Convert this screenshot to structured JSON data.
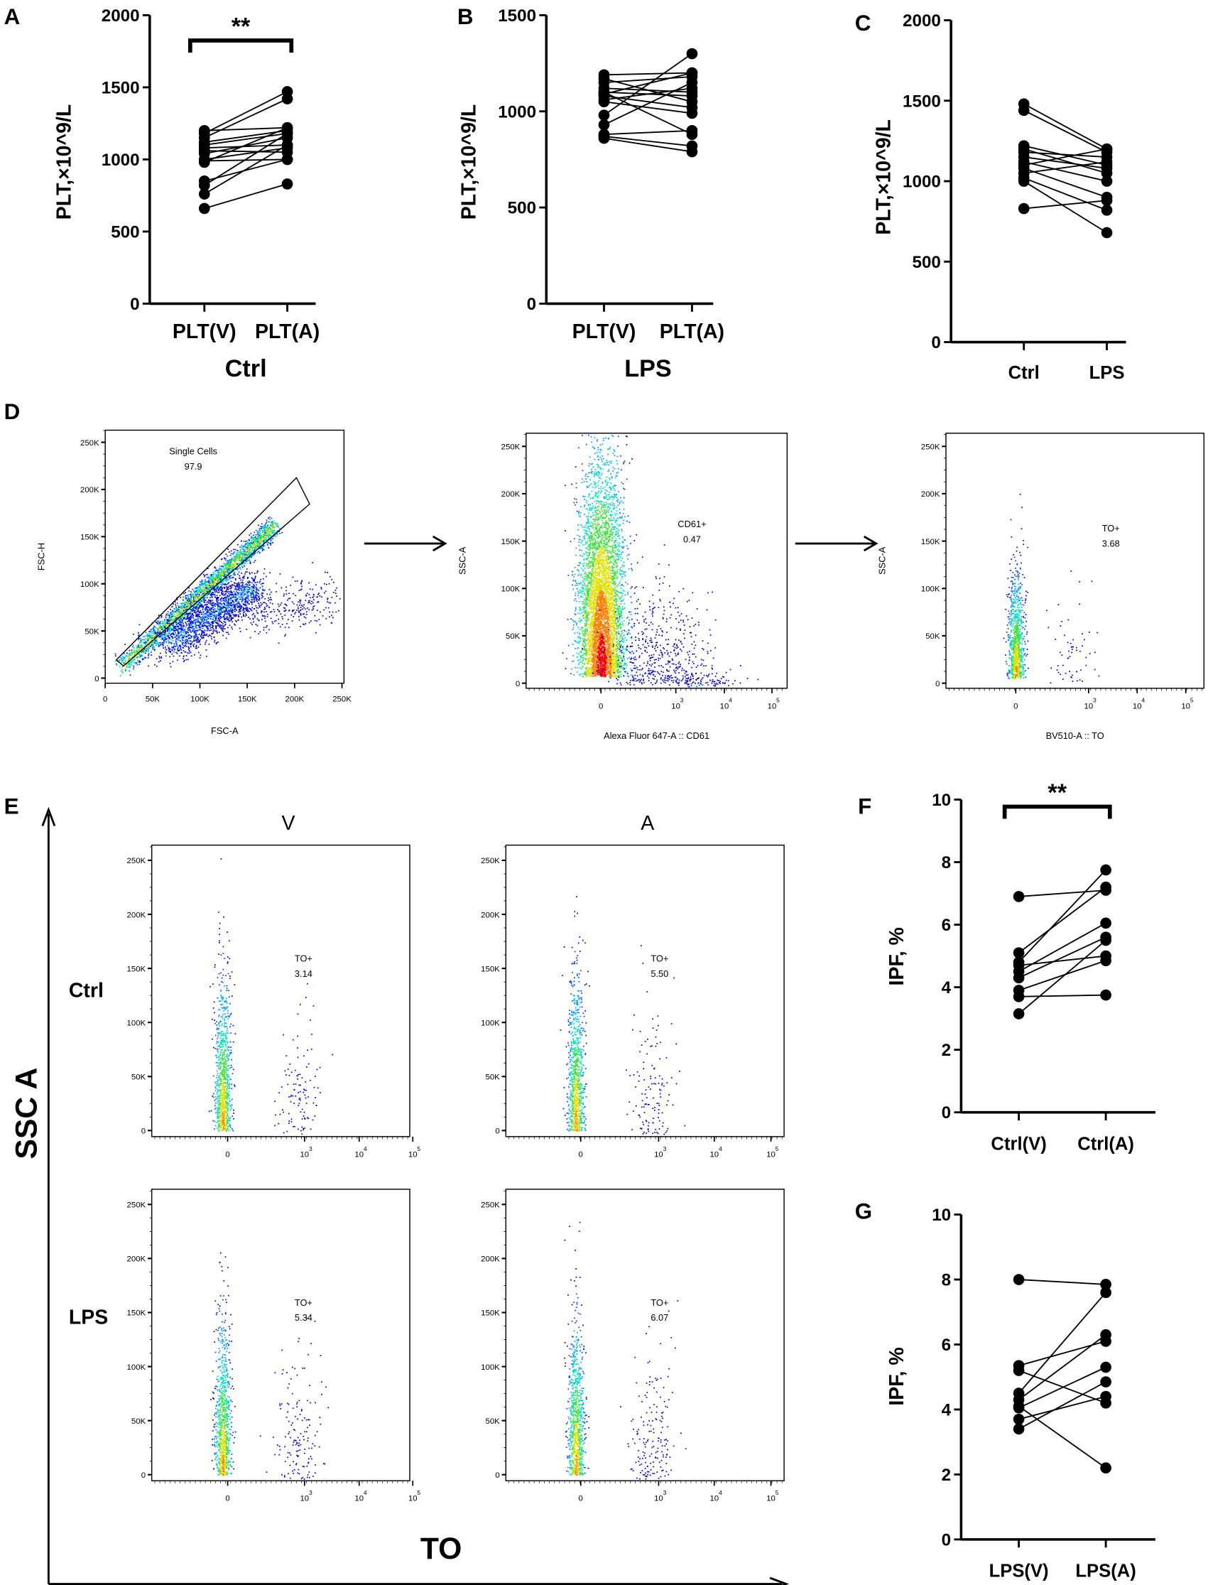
{
  "panel_letters": {
    "A": "A",
    "B": "B",
    "C": "C",
    "D": "D",
    "E": "E",
    "F": "F",
    "G": "G"
  },
  "chart_data": [
    {
      "id": "A",
      "type": "line",
      "title": "Ctrl",
      "ylabel": "PLT,×10^9/L",
      "ylim": [
        0,
        2000
      ],
      "yticks": [
        0,
        500,
        1000,
        1500,
        2000
      ],
      "categories": [
        "PLT(V)",
        "PLT(A)"
      ],
      "significance": "**",
      "pairs": [
        [
          1200,
          1220
        ],
        [
          1180,
          1470
        ],
        [
          1150,
          1420
        ],
        [
          1120,
          1200
        ],
        [
          1100,
          1180
        ],
        [
          1080,
          1100
        ],
        [
          1060,
          1050
        ],
        [
          1040,
          1150
        ],
        [
          1000,
          1080
        ],
        [
          990,
          1000
        ],
        [
          980,
          1220
        ],
        [
          850,
          1000
        ],
        [
          820,
          1180
        ],
        [
          760,
          1100
        ],
        [
          660,
          830
        ]
      ]
    },
    {
      "id": "B",
      "type": "line",
      "title": "LPS",
      "ylabel": "PLT,×10^9/L",
      "ylim": [
        0,
        1500
      ],
      "yticks": [
        0,
        500,
        1000,
        1500
      ],
      "categories": [
        "PLT(V)",
        "PLT(A)"
      ],
      "significance": "",
      "pairs": [
        [
          1190,
          1200
        ],
        [
          1170,
          1050
        ],
        [
          1150,
          1180
        ],
        [
          1120,
          1100
        ],
        [
          1100,
          1080
        ],
        [
          1090,
          1200
        ],
        [
          1080,
          1020
        ],
        [
          1050,
          990
        ],
        [
          980,
          1300
        ],
        [
          930,
          1150
        ],
        [
          880,
          900
        ],
        [
          870,
          820
        ],
        [
          860,
          790
        ],
        [
          1100,
          880
        ],
        [
          1060,
          1120
        ]
      ]
    },
    {
      "id": "C",
      "type": "line",
      "title": "",
      "ylabel": "PLT,×10^9/L",
      "ylim": [
        0,
        2000
      ],
      "yticks": [
        0,
        500,
        1000,
        1500,
        2000
      ],
      "categories": [
        "Ctrl",
        "LPS"
      ],
      "significance": "",
      "pairs": [
        [
          1480,
          1200
        ],
        [
          1440,
          1180
        ],
        [
          1220,
          1100
        ],
        [
          1200,
          1050
        ],
        [
          1180,
          1150
        ],
        [
          1150,
          1080
        ],
        [
          1120,
          1000
        ],
        [
          1100,
          1200
        ],
        [
          1080,
          900
        ],
        [
          1050,
          1120
        ],
        [
          1020,
          820
        ],
        [
          1000,
          680
        ],
        [
          830,
          880
        ]
      ]
    },
    {
      "id": "F",
      "type": "line",
      "title": "",
      "ylabel": "IPF, %",
      "ylim": [
        0,
        10
      ],
      "yticks": [
        0,
        2,
        4,
        6,
        8,
        10
      ],
      "categories": [
        "Ctrl(V)",
        "Ctrl(A)"
      ],
      "significance": "**",
      "pairs": [
        [
          6.9,
          7.1
        ],
        [
          5.1,
          7.2
        ],
        [
          4.8,
          7.75
        ],
        [
          4.7,
          5.0
        ],
        [
          4.5,
          6.05
        ],
        [
          4.3,
          5.6
        ],
        [
          3.9,
          4.85
        ],
        [
          3.7,
          3.75
        ],
        [
          3.15,
          5.5
        ]
      ]
    },
    {
      "id": "G",
      "type": "line",
      "title": "",
      "ylabel": "IPF, %",
      "ylim": [
        0,
        10
      ],
      "yticks": [
        0,
        2,
        4,
        6,
        8,
        10
      ],
      "categories": [
        "LPS(V)",
        "LPS(A)"
      ],
      "significance": "",
      "pairs": [
        [
          8.0,
          7.85
        ],
        [
          5.35,
          6.1
        ],
        [
          5.2,
          4.2
        ],
        [
          4.5,
          7.6
        ],
        [
          4.3,
          6.3
        ],
        [
          4.05,
          5.3
        ],
        [
          4.1,
          2.2
        ],
        [
          3.7,
          4.4
        ],
        [
          3.4,
          4.85
        ]
      ]
    }
  ],
  "flow": {
    "lin_ticks": [
      "0",
      "50K",
      "100K",
      "150K",
      "200K",
      "250K"
    ],
    "log_ticks": [
      "0",
      "10",
      "10",
      "10"
    ],
    "log_exps": [
      "",
      "3",
      "4",
      "5"
    ],
    "plots": [
      {
        "id": "D1",
        "xlabel": "FSC-A",
        "ylabel": "FSC-H",
        "gate_name": "Single Cells",
        "gate_value": "97.9"
      },
      {
        "id": "D2",
        "xlabel": "Alexa Fluor 647-A :: CD61",
        "ylabel": "SSC-A",
        "gate_name": "CD61+",
        "gate_value": "0.47"
      },
      {
        "id": "D3",
        "xlabel": "BV510-A :: TO",
        "ylabel": "SSC-A",
        "gate_name": "TO+",
        "gate_value": "3.68"
      },
      {
        "id": "E_ctrl_V",
        "gate_name": "TO+",
        "gate_value": "3.14"
      },
      {
        "id": "E_ctrl_A",
        "gate_name": "TO+",
        "gate_value": "5.50"
      },
      {
        "id": "E_lps_V",
        "gate_name": "TO+",
        "gate_value": "5.34"
      },
      {
        "id": "E_lps_A",
        "gate_name": "TO+",
        "gate_value": "6.07"
      }
    ],
    "E_cols": [
      "V",
      "A"
    ],
    "E_rows": [
      "Ctrl",
      "LPS"
    ],
    "E_yaxis": "SSC A",
    "E_xaxis": "TO"
  }
}
